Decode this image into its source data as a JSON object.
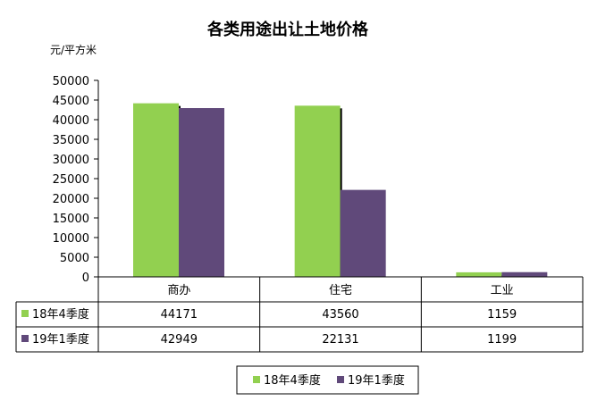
{
  "chart_data": {
    "type": "bar",
    "title": "各类用途出让土地价格",
    "unit_label": "元/平方米",
    "categories": [
      "商办",
      "住宅",
      "工业"
    ],
    "series": [
      {
        "name": "18年4季度",
        "values": [
          44171,
          43560,
          1159
        ],
        "value_labels": [
          "44171",
          "43560",
          "1159"
        ]
      },
      {
        "name": "19年1季度",
        "values": [
          42949,
          22131,
          1199
        ],
        "value_labels": [
          "42949",
          "22131",
          "1199"
        ]
      }
    ],
    "ylim": [
      0,
      50000
    ],
    "yticks": [
      0,
      5000,
      10000,
      15000,
      20000,
      25000,
      30000,
      35000,
      40000,
      45000,
      50000
    ],
    "ytick_labels": [
      "0",
      "5000",
      "10000",
      "15000",
      "20000",
      "25000",
      "30000",
      "35000",
      "40000",
      "45000",
      "50000"
    ],
    "grid": false,
    "data_table": true,
    "legend_position": "bottom",
    "colors": {
      "series1": "#92d050",
      "series2": "#60497a",
      "shadow": "#000000"
    }
  }
}
